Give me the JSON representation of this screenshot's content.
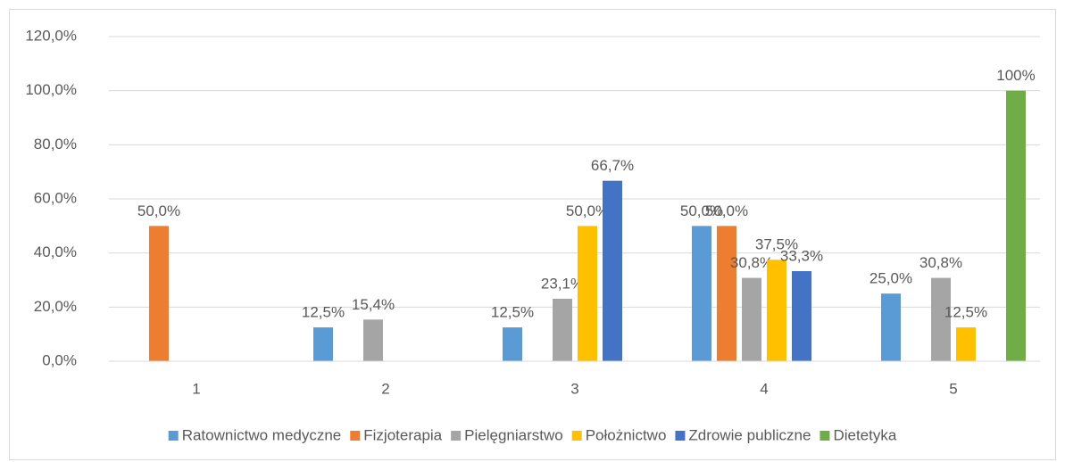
{
  "chart_data": {
    "type": "bar",
    "categories": [
      "1",
      "2",
      "3",
      "4",
      "5"
    ],
    "series": [
      {
        "name": "Ratownictwo medyczne",
        "color": "#5b9bd5",
        "values": [
          null,
          12.5,
          12.5,
          50,
          25
        ],
        "value_labels": [
          null,
          "12,5%",
          "12,5%",
          "50,0%",
          "25,0%"
        ]
      },
      {
        "name": "Fizjoterapia",
        "color": "#ed7d31",
        "values": [
          50,
          null,
          null,
          50,
          null
        ],
        "value_labels": [
          "50,0%",
          null,
          null,
          "50,0%",
          null
        ]
      },
      {
        "name": "Pielęgniarstwo",
        "color": "#a5a5a5",
        "values": [
          null,
          15.4,
          23.1,
          30.8,
          30.8
        ],
        "value_labels": [
          null,
          "15,4%",
          "23,1%",
          "30,8%",
          "30,8%"
        ]
      },
      {
        "name": "Położnictwo",
        "color": "#ffc000",
        "values": [
          null,
          null,
          50,
          37.5,
          12.5
        ],
        "value_labels": [
          null,
          null,
          "50,0%",
          "37,5%",
          "12,5%"
        ]
      },
      {
        "name": "Zdrowie publiczne",
        "color": "#4472c4",
        "values": [
          null,
          null,
          66.7,
          33.3,
          null
        ],
        "value_labels": [
          null,
          null,
          "66,7%",
          "33,3%",
          null
        ]
      },
      {
        "name": "Dietetyka",
        "color": "#70ad47",
        "values": [
          null,
          null,
          null,
          null,
          100
        ],
        "value_labels": [
          null,
          null,
          null,
          null,
          "100%"
        ]
      }
    ],
    "ylim": [
      0,
      120
    ],
    "yticks": [
      {
        "value": 0,
        "label": "0,0%"
      },
      {
        "value": 20,
        "label": "20,0%"
      },
      {
        "value": 40,
        "label": "40,0%"
      },
      {
        "value": 60,
        "label": "60,0%"
      },
      {
        "value": 80,
        "label": "80,0%"
      },
      {
        "value": 100,
        "label": "100,0%"
      },
      {
        "value": 120,
        "label": "120,0%"
      }
    ],
    "grid": true,
    "legend": "bottom"
  }
}
